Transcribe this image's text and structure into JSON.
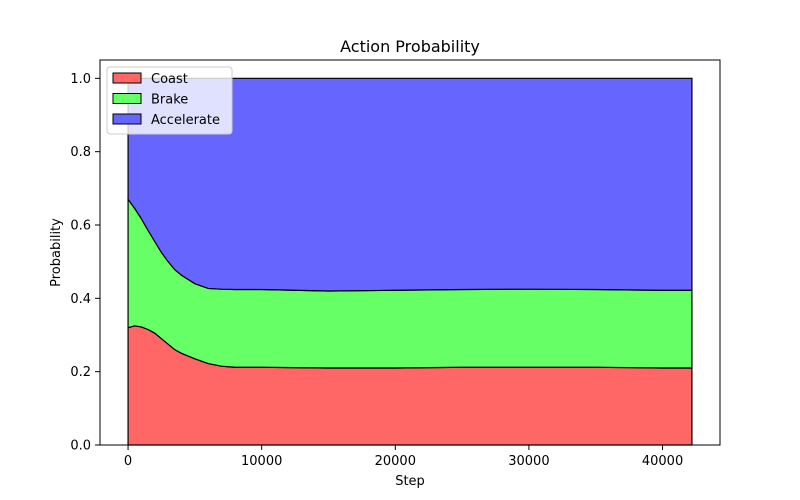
{
  "chart_data": {
    "type": "area",
    "stacked": true,
    "title": "Action Probability",
    "xlabel": "Step",
    "ylabel": "Probability",
    "xlim": [
      -2100,
      44300
    ],
    "ylim": [
      0,
      1.05
    ],
    "xticks": [
      0,
      10000,
      20000,
      30000,
      40000
    ],
    "yticks": [
      0.0,
      0.2,
      0.4,
      0.6,
      0.8,
      1.0
    ],
    "xtick_labels": [
      "0",
      "10000",
      "20000",
      "30000",
      "40000"
    ],
    "ytick_labels": [
      "0.0",
      "0.2",
      "0.4",
      "0.6",
      "0.8",
      "1.0"
    ],
    "legend_position": "top-left",
    "grid": false,
    "x": [
      0,
      500,
      1000,
      1500,
      2000,
      2500,
      3000,
      3500,
      4000,
      5000,
      6000,
      7000,
      8000,
      10000,
      15000,
      20000,
      25000,
      30000,
      35000,
      40000,
      42200
    ],
    "series": [
      {
        "name": "Coast",
        "color": "#ff6666",
        "values": [
          0.32,
          0.325,
          0.322,
          0.315,
          0.305,
          0.29,
          0.275,
          0.26,
          0.25,
          0.235,
          0.222,
          0.215,
          0.212,
          0.212,
          0.21,
          0.21,
          0.212,
          0.212,
          0.212,
          0.21,
          0.21
        ]
      },
      {
        "name": "Brake",
        "color": "#66ff66",
        "values": [
          0.35,
          0.32,
          0.295,
          0.27,
          0.25,
          0.235,
          0.225,
          0.218,
          0.213,
          0.205,
          0.205,
          0.21,
          0.212,
          0.212,
          0.21,
          0.212,
          0.212,
          0.213,
          0.212,
          0.212,
          0.212
        ]
      },
      {
        "name": "Accelerate",
        "color": "#6666ff",
        "values": [
          0.33,
          0.355,
          0.383,
          0.415,
          0.445,
          0.475,
          0.5,
          0.522,
          0.537,
          0.56,
          0.573,
          0.575,
          0.576,
          0.576,
          0.58,
          0.578,
          0.576,
          0.575,
          0.576,
          0.578,
          0.578
        ]
      }
    ]
  }
}
